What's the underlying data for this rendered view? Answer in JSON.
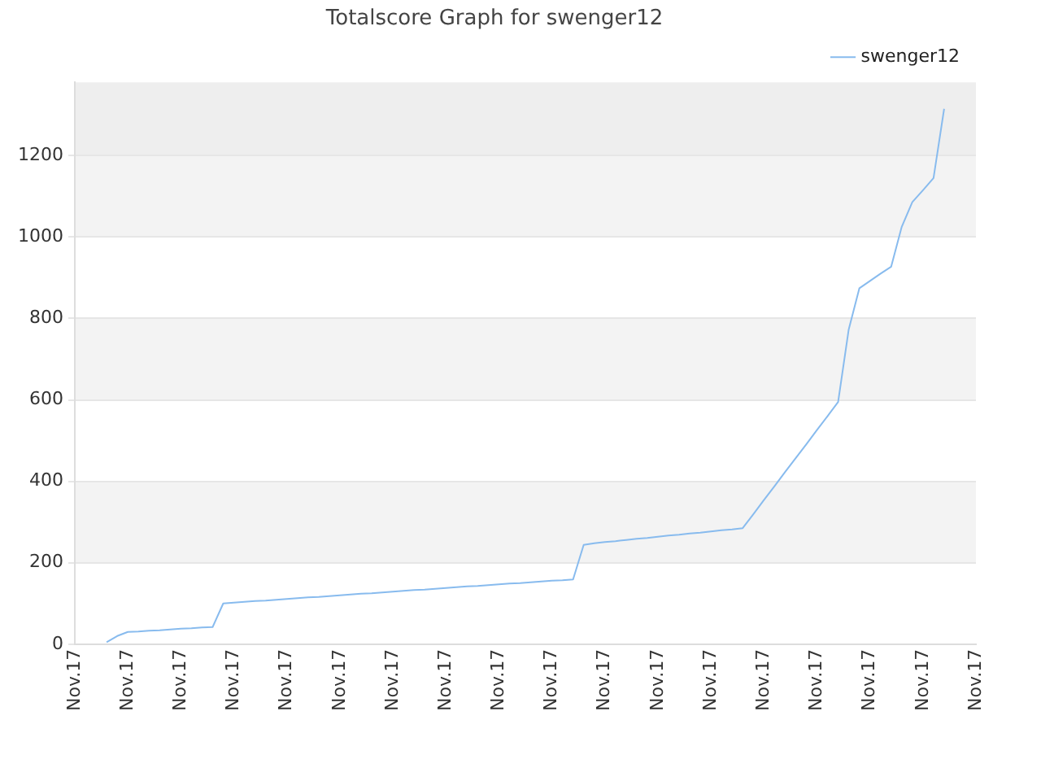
{
  "chart_data": {
    "type": "line",
    "title": "Totalscore Graph for swenger12",
    "categories": [
      "Nov.17",
      null,
      null,
      null,
      null,
      "Nov.17",
      null,
      null,
      null,
      null,
      "Nov.17",
      null,
      null,
      null,
      null,
      "Nov.17",
      null,
      null,
      null,
      null,
      "Nov.17",
      null,
      null,
      null,
      null,
      "Nov.17",
      null,
      null,
      null,
      null,
      "Nov.17",
      null,
      null,
      null,
      null,
      "Nov.17",
      null,
      null,
      null,
      null,
      "Nov.17",
      null,
      null,
      null,
      null,
      "Nov.17",
      null,
      null,
      null,
      null,
      "Nov.17",
      null,
      null,
      null,
      null,
      "Nov.17",
      null,
      null,
      null,
      null,
      "Nov.17",
      null,
      null,
      null,
      null,
      "Nov.17",
      null,
      null,
      null,
      null,
      "Nov.17",
      null,
      null,
      null,
      null,
      "Nov.17",
      null,
      null,
      null,
      null,
      "Nov.17",
      null,
      null,
      null,
      null,
      "Nov.17"
    ],
    "series": [
      {
        "name": "swenger12",
        "color": "#88bbee",
        "values": [
          null,
          null,
          null,
          5,
          20,
          30,
          31,
          33,
          34,
          36,
          38,
          39,
          41,
          42,
          100,
          102,
          104,
          106,
          107,
          109,
          111,
          113,
          115,
          116,
          118,
          120,
          122,
          124,
          125,
          127,
          129,
          131,
          133,
          134,
          136,
          138,
          140,
          142,
          143,
          145,
          147,
          149,
          150,
          152,
          154,
          156,
          157,
          159,
          244,
          248,
          251,
          253,
          256,
          259,
          261,
          264,
          267,
          269,
          272,
          274,
          277,
          280,
          282,
          285,
          319,
          354,
          388,
          423,
          457,
          491,
          526,
          560,
          595,
          773,
          874,
          892,
          910,
          927,
          1025,
          1086,
          1115,
          1145,
          1315,
          null,
          null,
          null
        ]
      }
    ],
    "ylim": [
      0,
      1380
    ],
    "yticks": [
      0,
      200,
      400,
      600,
      800,
      1000,
      1200
    ],
    "bands": [
      {
        "axis": "y",
        "from": 200,
        "to": 400,
        "color": "#f3f3f3"
      },
      {
        "axis": "y",
        "from": 600,
        "to": 800,
        "color": "#f3f3f3"
      },
      {
        "axis": "y",
        "from": 1000,
        "to": 1200,
        "color": "#f3f3f3"
      },
      {
        "axis": "y",
        "from": 1200,
        "to": 1380,
        "color": "#eeeeee"
      }
    ],
    "grid": "y",
    "legend": "top right",
    "marker": "none",
    "line_style": "solid"
  }
}
